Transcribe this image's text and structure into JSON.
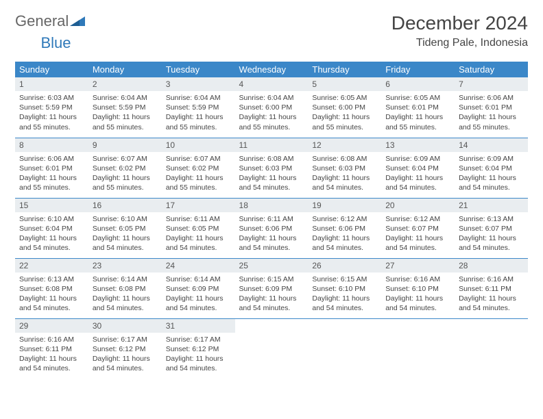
{
  "brand": {
    "general": "General",
    "blue": "Blue"
  },
  "title": "December 2024",
  "location": "Tideng Pale, Indonesia",
  "colors": {
    "header_bg": "#3b87c8",
    "header_text": "#ffffff",
    "daynum_bg": "#e9edf0",
    "row_divider": "#3b87c8",
    "brand_blue": "#2f79b9",
    "body_text": "#444444",
    "page_bg": "#ffffff"
  },
  "weekdays": [
    "Sunday",
    "Monday",
    "Tuesday",
    "Wednesday",
    "Thursday",
    "Friday",
    "Saturday"
  ],
  "weeks": [
    [
      {
        "n": "1",
        "sr": "6:03 AM",
        "ss": "5:59 PM",
        "dl": "11 hours and 55 minutes."
      },
      {
        "n": "2",
        "sr": "6:04 AM",
        "ss": "5:59 PM",
        "dl": "11 hours and 55 minutes."
      },
      {
        "n": "3",
        "sr": "6:04 AM",
        "ss": "5:59 PM",
        "dl": "11 hours and 55 minutes."
      },
      {
        "n": "4",
        "sr": "6:04 AM",
        "ss": "6:00 PM",
        "dl": "11 hours and 55 minutes."
      },
      {
        "n": "5",
        "sr": "6:05 AM",
        "ss": "6:00 PM",
        "dl": "11 hours and 55 minutes."
      },
      {
        "n": "6",
        "sr": "6:05 AM",
        "ss": "6:01 PM",
        "dl": "11 hours and 55 minutes."
      },
      {
        "n": "7",
        "sr": "6:06 AM",
        "ss": "6:01 PM",
        "dl": "11 hours and 55 minutes."
      }
    ],
    [
      {
        "n": "8",
        "sr": "6:06 AM",
        "ss": "6:01 PM",
        "dl": "11 hours and 55 minutes."
      },
      {
        "n": "9",
        "sr": "6:07 AM",
        "ss": "6:02 PM",
        "dl": "11 hours and 55 minutes."
      },
      {
        "n": "10",
        "sr": "6:07 AM",
        "ss": "6:02 PM",
        "dl": "11 hours and 55 minutes."
      },
      {
        "n": "11",
        "sr": "6:08 AM",
        "ss": "6:03 PM",
        "dl": "11 hours and 54 minutes."
      },
      {
        "n": "12",
        "sr": "6:08 AM",
        "ss": "6:03 PM",
        "dl": "11 hours and 54 minutes."
      },
      {
        "n": "13",
        "sr": "6:09 AM",
        "ss": "6:04 PM",
        "dl": "11 hours and 54 minutes."
      },
      {
        "n": "14",
        "sr": "6:09 AM",
        "ss": "6:04 PM",
        "dl": "11 hours and 54 minutes."
      }
    ],
    [
      {
        "n": "15",
        "sr": "6:10 AM",
        "ss": "6:04 PM",
        "dl": "11 hours and 54 minutes."
      },
      {
        "n": "16",
        "sr": "6:10 AM",
        "ss": "6:05 PM",
        "dl": "11 hours and 54 minutes."
      },
      {
        "n": "17",
        "sr": "6:11 AM",
        "ss": "6:05 PM",
        "dl": "11 hours and 54 minutes."
      },
      {
        "n": "18",
        "sr": "6:11 AM",
        "ss": "6:06 PM",
        "dl": "11 hours and 54 minutes."
      },
      {
        "n": "19",
        "sr": "6:12 AM",
        "ss": "6:06 PM",
        "dl": "11 hours and 54 minutes."
      },
      {
        "n": "20",
        "sr": "6:12 AM",
        "ss": "6:07 PM",
        "dl": "11 hours and 54 minutes."
      },
      {
        "n": "21",
        "sr": "6:13 AM",
        "ss": "6:07 PM",
        "dl": "11 hours and 54 minutes."
      }
    ],
    [
      {
        "n": "22",
        "sr": "6:13 AM",
        "ss": "6:08 PM",
        "dl": "11 hours and 54 minutes."
      },
      {
        "n": "23",
        "sr": "6:14 AM",
        "ss": "6:08 PM",
        "dl": "11 hours and 54 minutes."
      },
      {
        "n": "24",
        "sr": "6:14 AM",
        "ss": "6:09 PM",
        "dl": "11 hours and 54 minutes."
      },
      {
        "n": "25",
        "sr": "6:15 AM",
        "ss": "6:09 PM",
        "dl": "11 hours and 54 minutes."
      },
      {
        "n": "26",
        "sr": "6:15 AM",
        "ss": "6:10 PM",
        "dl": "11 hours and 54 minutes."
      },
      {
        "n": "27",
        "sr": "6:16 AM",
        "ss": "6:10 PM",
        "dl": "11 hours and 54 minutes."
      },
      {
        "n": "28",
        "sr": "6:16 AM",
        "ss": "6:11 PM",
        "dl": "11 hours and 54 minutes."
      }
    ],
    [
      {
        "n": "29",
        "sr": "6:16 AM",
        "ss": "6:11 PM",
        "dl": "11 hours and 54 minutes."
      },
      {
        "n": "30",
        "sr": "6:17 AM",
        "ss": "6:12 PM",
        "dl": "11 hours and 54 minutes."
      },
      {
        "n": "31",
        "sr": "6:17 AM",
        "ss": "6:12 PM",
        "dl": "11 hours and 54 minutes."
      },
      null,
      null,
      null,
      null
    ]
  ],
  "labels": {
    "sunrise": "Sunrise: ",
    "sunset": "Sunset: ",
    "daylight": "Daylight: "
  }
}
